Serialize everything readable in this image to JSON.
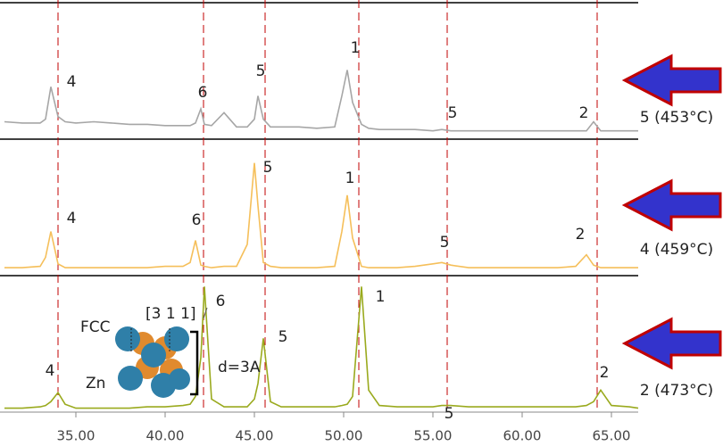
{
  "chart_data": {
    "type": "line",
    "x": [
      31,
      32,
      33,
      33.3,
      33.6,
      34.0,
      34.4,
      35,
      36,
      37,
      38,
      39,
      40,
      41,
      41.4,
      41.7,
      42.0,
      42.2,
      42.6,
      43.3,
      44,
      44.6,
      45.0,
      45.2,
      45.5,
      45.9,
      46.5,
      47.5,
      48.5,
      49.5,
      49.9,
      50.2,
      50.5,
      51.0,
      51.4,
      52,
      53,
      54,
      55,
      55.5,
      56,
      57,
      58,
      59,
      60,
      61,
      62,
      63,
      63.6,
      64.0,
      64.4,
      65,
      66,
      66.5
    ],
    "series": [
      {
        "name": "5 (453°C)",
        "color": "#a6a6a6",
        "peak_labels": [
          "4",
          "6",
          "5",
          "1",
          "5",
          "2"
        ],
        "values": [
          10,
          9,
          9,
          12,
          37,
          14,
          10,
          9,
          10,
          9,
          8,
          8,
          7,
          7,
          7,
          9,
          20,
          8,
          7,
          17,
          6,
          6,
          12,
          30,
          12,
          6,
          6,
          6,
          5,
          6,
          30,
          50,
          25,
          8,
          5,
          4,
          4,
          4,
          3,
          4,
          3,
          3,
          3,
          3,
          3,
          3,
          3,
          3,
          3,
          10,
          3,
          3,
          3,
          3
        ]
      },
      {
        "name": "4 (459°C)",
        "color": "#f5bf5a",
        "peak_labels": [
          "4",
          "6",
          "5",
          "1",
          "5",
          "2"
        ],
        "values": [
          2,
          2,
          3,
          10,
          30,
          5,
          2,
          2,
          2,
          2,
          2,
          2,
          3,
          3,
          6,
          23,
          4,
          3,
          2,
          3,
          3,
          20,
          83,
          50,
          6,
          3,
          2,
          2,
          2,
          3,
          30,
          58,
          25,
          3,
          2,
          2,
          2,
          3,
          5,
          6,
          4,
          2,
          2,
          2,
          2,
          2,
          2,
          3,
          12,
          4,
          2,
          2,
          2,
          2
        ]
      },
      {
        "name": "2 (473°C)",
        "color": "#9aaa1e",
        "peak_labels": [
          "4",
          "6",
          "5",
          "1",
          "5",
          "2"
        ],
        "values": [
          1,
          1,
          2,
          3,
          6,
          13,
          4,
          1,
          1,
          1,
          1,
          2,
          2,
          3,
          4,
          10,
          40,
          95,
          8,
          2,
          2,
          2,
          8,
          20,
          55,
          6,
          2,
          2,
          2,
          2,
          3,
          4,
          10,
          95,
          15,
          3,
          2,
          2,
          2,
          3,
          3,
          2,
          2,
          2,
          2,
          2,
          2,
          2,
          3,
          6,
          15,
          3,
          2,
          1
        ]
      }
    ],
    "xlim": [
      30.75,
      66.5
    ],
    "ylim": [
      0,
      100
    ],
    "xticks": [
      {
        "value": 35,
        "label": "35.00"
      },
      {
        "value": 40,
        "label": "40.00"
      },
      {
        "value": 45,
        "label": "45.00"
      },
      {
        "value": 50,
        "label": "50.00"
      },
      {
        "value": 55,
        "label": "55.00"
      },
      {
        "value": 60,
        "label": "60.00"
      },
      {
        "value": 65,
        "label": "65.00"
      }
    ],
    "reference_lines": [
      34.0,
      42.15,
      45.6,
      50.85,
      55.8,
      64.2
    ],
    "reference_color": "#c00000",
    "arrow_color": "#3333cc",
    "arrow_outline": "#c00000",
    "inset": {
      "structure": "FCC",
      "direction": "[3 1 1]",
      "element": "Zn",
      "spacing": "d=3A"
    }
  }
}
